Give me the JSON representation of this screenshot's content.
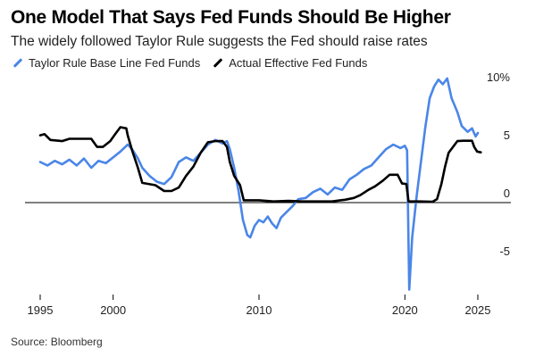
{
  "header": {
    "title": "One Model That Says Fed Funds Should Be Higher",
    "subtitle": "The widely followed Taylor Rule suggests the Fed should raise rates"
  },
  "footer": {
    "source": "Source: Bloomberg"
  },
  "colors": {
    "blue": "#4a86e8",
    "black": "#000000",
    "axis": "#000000"
  },
  "chart_data": {
    "type": "line",
    "title": "One Model That Says Fed Funds Should Be Higher",
    "subtitle": "The widely followed Taylor Rule suggests the Fed should raise rates",
    "xlabel": "",
    "ylabel": "",
    "xlim": [
      1995,
      2025
    ],
    "ylim": [
      -7.5,
      10.5
    ],
    "x_ticks": [
      1995,
      2000,
      2010,
      2020,
      2025
    ],
    "x_tick_labels": [
      "1995",
      "2000",
      "2010",
      "2020",
      "2025"
    ],
    "y_ticks": [
      10,
      5,
      0,
      -5
    ],
    "y_tick_labels": [
      "10%",
      "5",
      "0",
      "-5"
    ],
    "grid": false,
    "legend_position": "top-left",
    "series": [
      {
        "name": "Taylor Rule Base Line Fed Funds",
        "color": "#4a86e8",
        "points": [
          [
            1995.0,
            3.5
          ],
          [
            1995.5,
            3.2
          ],
          [
            1996.0,
            3.6
          ],
          [
            1996.5,
            3.3
          ],
          [
            1997.0,
            3.7
          ],
          [
            1997.5,
            3.2
          ],
          [
            1998.0,
            3.8
          ],
          [
            1998.5,
            3.0
          ],
          [
            1999.0,
            3.6
          ],
          [
            1999.5,
            3.4
          ],
          [
            2000.0,
            3.9
          ],
          [
            2000.5,
            4.4
          ],
          [
            2001.0,
            5.0
          ],
          [
            2001.3,
            4.6
          ],
          [
            2001.7,
            3.8
          ],
          [
            2002.0,
            3.0
          ],
          [
            2002.5,
            2.3
          ],
          [
            2003.0,
            1.8
          ],
          [
            2003.5,
            1.6
          ],
          [
            2004.0,
            2.2
          ],
          [
            2004.5,
            3.5
          ],
          [
            2005.0,
            3.9
          ],
          [
            2005.5,
            3.6
          ],
          [
            2006.0,
            4.3
          ],
          [
            2006.5,
            5.0
          ],
          [
            2007.0,
            5.4
          ],
          [
            2007.5,
            5.1
          ],
          [
            2007.8,
            5.3
          ],
          [
            2008.0,
            4.6
          ],
          [
            2008.3,
            3.0
          ],
          [
            2008.6,
            1.0
          ],
          [
            2008.9,
            -1.5
          ],
          [
            2009.2,
            -2.8
          ],
          [
            2009.4,
            -3.0
          ],
          [
            2009.7,
            -2.0
          ],
          [
            2010.0,
            -1.5
          ],
          [
            2010.3,
            -1.7
          ],
          [
            2010.6,
            -1.2
          ],
          [
            2010.9,
            -1.8
          ],
          [
            2011.2,
            -2.2
          ],
          [
            2011.5,
            -1.3
          ],
          [
            2011.9,
            -0.8
          ],
          [
            2012.3,
            -0.3
          ],
          [
            2012.7,
            0.3
          ],
          [
            2013.2,
            0.4
          ],
          [
            2013.7,
            0.9
          ],
          [
            2014.2,
            1.2
          ],
          [
            2014.7,
            0.7
          ],
          [
            2015.2,
            1.3
          ],
          [
            2015.7,
            1.1
          ],
          [
            2016.2,
            2.0
          ],
          [
            2016.7,
            2.4
          ],
          [
            2017.2,
            2.9
          ],
          [
            2017.7,
            3.2
          ],
          [
            2018.2,
            3.9
          ],
          [
            2018.7,
            4.6
          ],
          [
            2019.2,
            5.0
          ],
          [
            2019.7,
            4.7
          ],
          [
            2020.0,
            4.9
          ],
          [
            2020.15,
            4.5
          ],
          [
            2020.3,
            -7.5
          ],
          [
            2020.5,
            -3.0
          ],
          [
            2020.8,
            0.5
          ],
          [
            2021.1,
            3.5
          ],
          [
            2021.4,
            6.5
          ],
          [
            2021.7,
            9.0
          ],
          [
            2022.0,
            10.0
          ],
          [
            2022.3,
            10.6
          ],
          [
            2022.6,
            10.2
          ],
          [
            2022.9,
            10.7
          ],
          [
            2023.2,
            9.0
          ],
          [
            2023.6,
            7.8
          ],
          [
            2023.9,
            6.6
          ],
          [
            2024.3,
            6.1
          ],
          [
            2024.6,
            6.4
          ],
          [
            2024.85,
            5.7
          ],
          [
            2025.0,
            6.0
          ]
        ]
      },
      {
        "name": "Actual Effective Fed Funds",
        "color": "#000000",
        "points": [
          [
            1995.0,
            5.8
          ],
          [
            1995.3,
            5.9
          ],
          [
            1995.7,
            5.4
          ],
          [
            1996.5,
            5.3
          ],
          [
            1997.0,
            5.5
          ],
          [
            1998.0,
            5.5
          ],
          [
            1998.5,
            5.5
          ],
          [
            1998.9,
            4.8
          ],
          [
            1999.3,
            4.8
          ],
          [
            1999.8,
            5.3
          ],
          [
            2000.2,
            6.0
          ],
          [
            2000.5,
            6.5
          ],
          [
            2000.9,
            6.4
          ],
          [
            2001.0,
            5.8
          ],
          [
            2001.3,
            4.5
          ],
          [
            2001.7,
            3.0
          ],
          [
            2002.0,
            1.7
          ],
          [
            2002.9,
            1.5
          ],
          [
            2003.5,
            1.0
          ],
          [
            2004.0,
            1.0
          ],
          [
            2004.5,
            1.3
          ],
          [
            2005.0,
            2.3
          ],
          [
            2005.5,
            3.1
          ],
          [
            2006.0,
            4.3
          ],
          [
            2006.5,
            5.2
          ],
          [
            2007.0,
            5.3
          ],
          [
            2007.5,
            5.3
          ],
          [
            2007.8,
            4.8
          ],
          [
            2008.0,
            3.5
          ],
          [
            2008.3,
            2.3
          ],
          [
            2008.7,
            1.5
          ],
          [
            2008.95,
            0.2
          ],
          [
            2009.3,
            0.2
          ],
          [
            2010.0,
            0.2
          ],
          [
            2011.0,
            0.1
          ],
          [
            2012.0,
            0.15
          ],
          [
            2013.0,
            0.1
          ],
          [
            2014.0,
            0.1
          ],
          [
            2015.0,
            0.1
          ],
          [
            2015.9,
            0.25
          ],
          [
            2016.5,
            0.4
          ],
          [
            2016.95,
            0.65
          ],
          [
            2017.5,
            1.1
          ],
          [
            2017.95,
            1.4
          ],
          [
            2018.5,
            1.9
          ],
          [
            2018.95,
            2.4
          ],
          [
            2019.5,
            2.4
          ],
          [
            2019.8,
            1.65
          ],
          [
            2020.1,
            1.6
          ],
          [
            2020.25,
            0.1
          ],
          [
            2021.0,
            0.1
          ],
          [
            2021.9,
            0.08
          ],
          [
            2022.2,
            0.3
          ],
          [
            2022.5,
            1.6
          ],
          [
            2022.75,
            3.1
          ],
          [
            2023.0,
            4.3
          ],
          [
            2023.3,
            4.8
          ],
          [
            2023.6,
            5.3
          ],
          [
            2024.0,
            5.33
          ],
          [
            2024.6,
            5.33
          ],
          [
            2024.75,
            4.8
          ],
          [
            2024.95,
            4.4
          ],
          [
            2025.2,
            4.33
          ]
        ]
      }
    ]
  }
}
